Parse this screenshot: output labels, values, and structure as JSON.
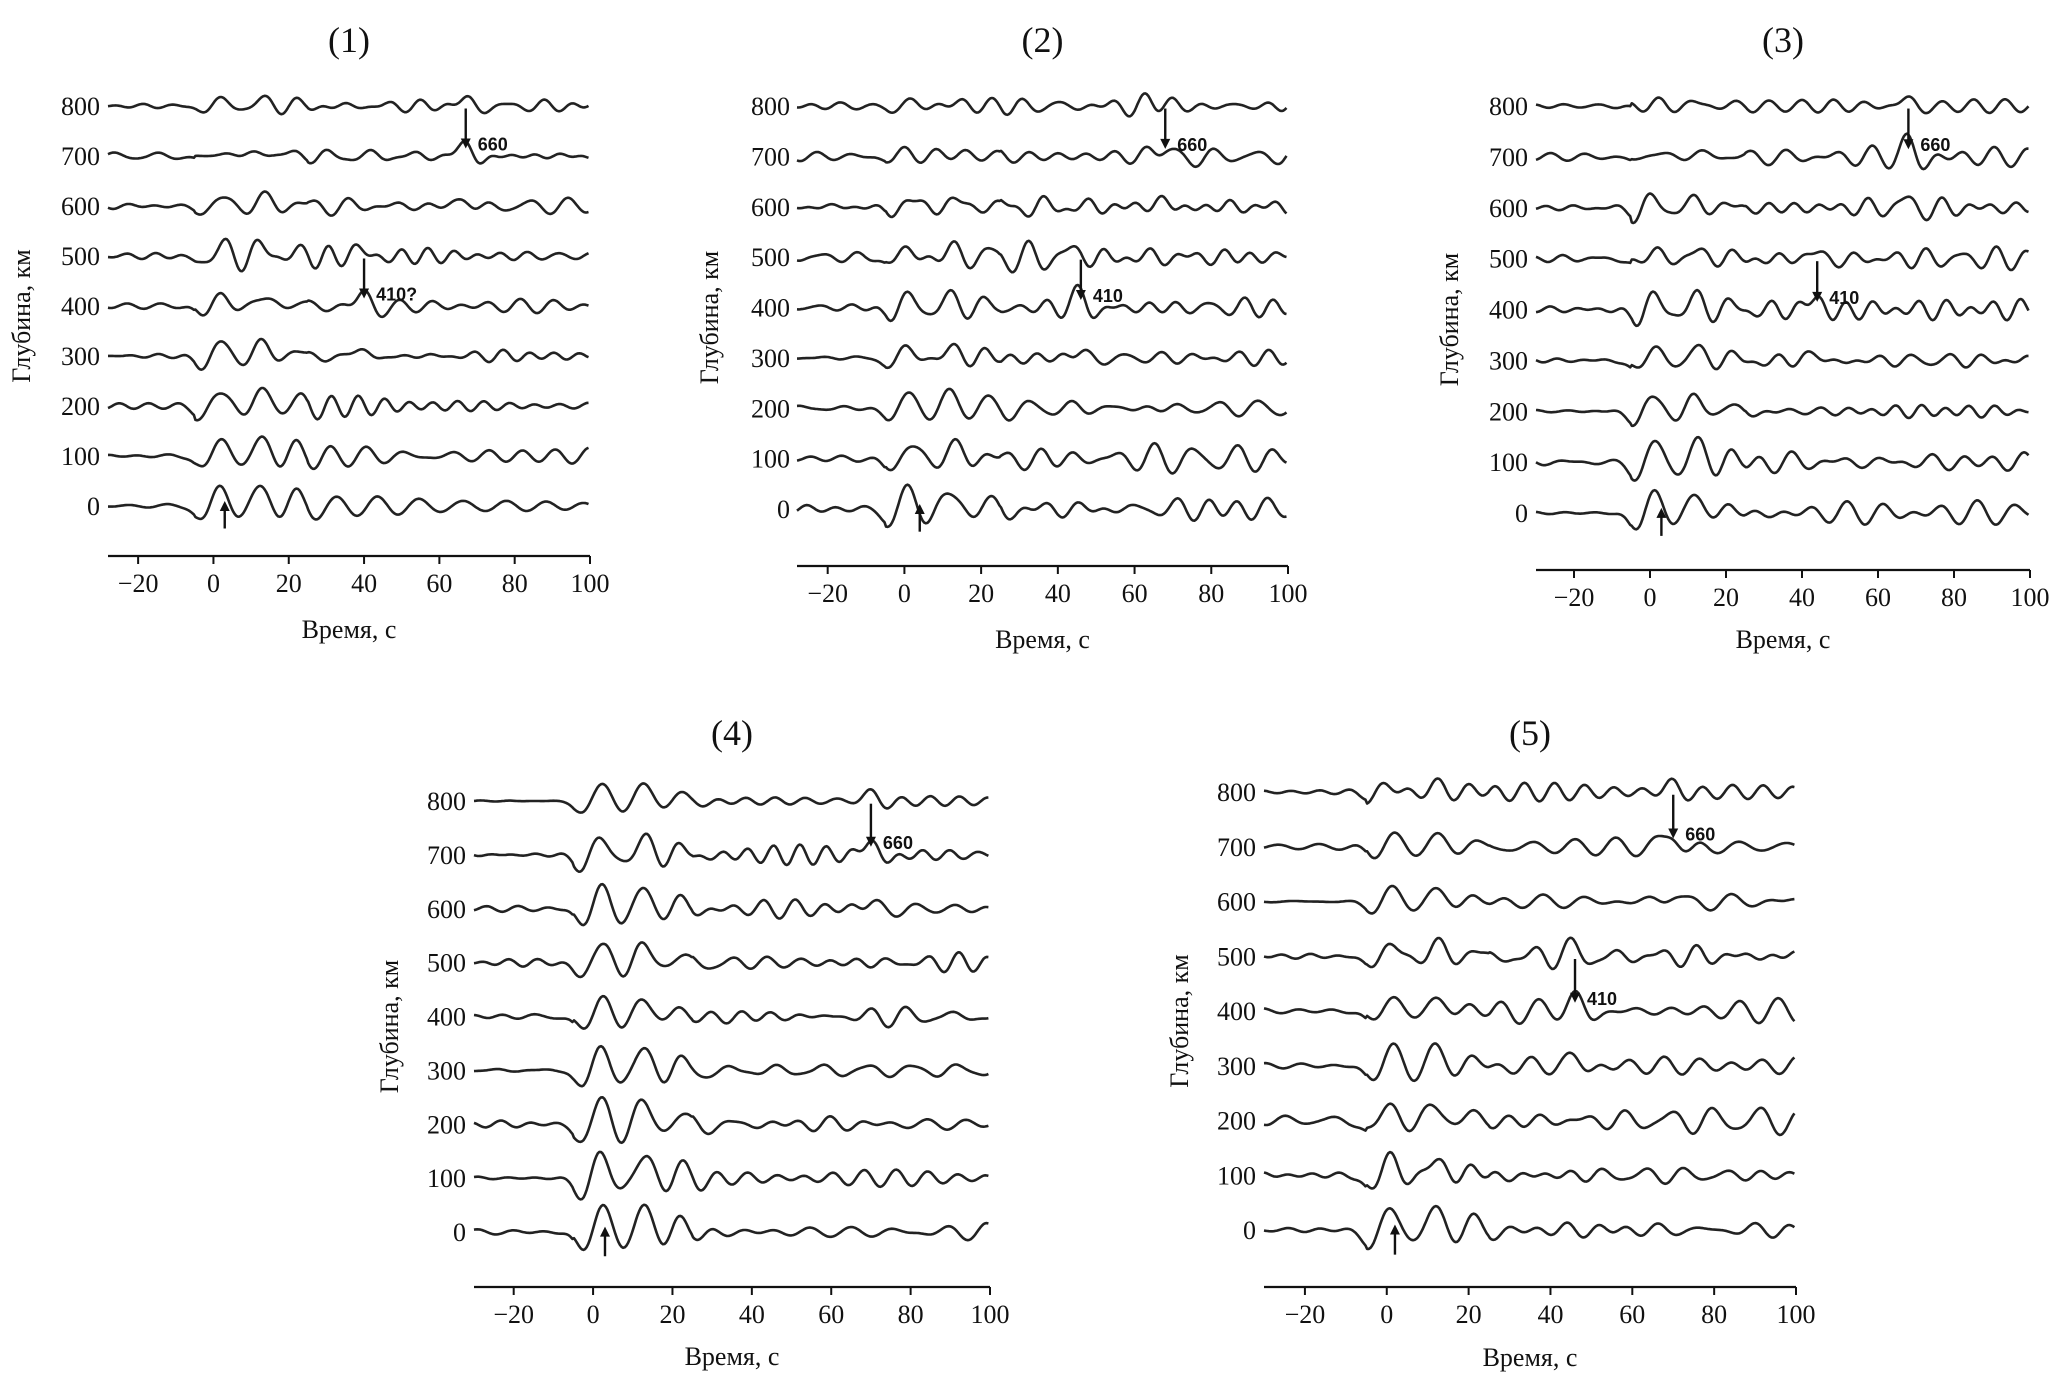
{
  "chart_data": [
    {
      "type": "line",
      "title": "(1)",
      "xlabel": "Время, с",
      "ylabel": "Глубина, км",
      "x_ticks": [
        "−20",
        "0",
        "20",
        "40",
        "60",
        "80",
        "100"
      ],
      "x_tick_values": [
        -20,
        0,
        20,
        40,
        60,
        80,
        100
      ],
      "xlim": [
        -28,
        100
      ],
      "depths": [
        0,
        100,
        200,
        300,
        400,
        500,
        600,
        700,
        800
      ],
      "y_tick_labels": [
        "0",
        "100",
        "200",
        "300",
        "400",
        "500",
        "600",
        "700",
        "800"
      ],
      "series_note": "one receiver-function trace per depth",
      "annotations": [
        {
          "text": "660",
          "time": 67,
          "depth": 700,
          "arrow": "down"
        },
        {
          "text": "410?",
          "time": 40,
          "depth": 400,
          "arrow": "down"
        },
        {
          "text": "",
          "time": 3,
          "depth": 0,
          "arrow": "up"
        }
      ]
    },
    {
      "type": "line",
      "title": "(2)",
      "xlabel": "Время, с",
      "ylabel": "Глубина, км",
      "x_ticks": [
        "−20",
        "0",
        "20",
        "40",
        "60",
        "80",
        "100"
      ],
      "x_tick_values": [
        -20,
        0,
        20,
        40,
        60,
        80,
        100
      ],
      "xlim": [
        -28,
        100
      ],
      "depths": [
        0,
        100,
        200,
        300,
        400,
        500,
        600,
        700,
        800
      ],
      "y_tick_labels": [
        "0",
        "100",
        "200",
        "300",
        "400",
        "500",
        "600",
        "700",
        "800"
      ],
      "annotations": [
        {
          "text": "660",
          "time": 68,
          "depth": 700,
          "arrow": "down"
        },
        {
          "text": "410",
          "time": 46,
          "depth": 400,
          "arrow": "down"
        },
        {
          "text": "",
          "time": 4,
          "depth": 0,
          "arrow": "up"
        }
      ]
    },
    {
      "type": "line",
      "title": "(3)",
      "xlabel": "Время, с",
      "ylabel": "Глубина, км",
      "x_ticks": [
        "−20",
        "0",
        "20",
        "40",
        "60",
        "80",
        "100"
      ],
      "x_tick_values": [
        -20,
        0,
        20,
        40,
        60,
        80,
        100
      ],
      "xlim": [
        -30,
        100
      ],
      "depths": [
        0,
        100,
        200,
        300,
        400,
        500,
        600,
        700,
        800
      ],
      "y_tick_labels": [
        "0",
        "100",
        "200",
        "300",
        "400",
        "500",
        "600",
        "700",
        "800"
      ],
      "annotations": [
        {
          "text": "660",
          "time": 68,
          "depth": 700,
          "arrow": "down"
        },
        {
          "text": "410",
          "time": 44,
          "depth": 400,
          "arrow": "down"
        },
        {
          "text": "",
          "time": 3,
          "depth": 0,
          "arrow": "up"
        }
      ]
    },
    {
      "type": "line",
      "title": "(4)",
      "xlabel": "Время, с",
      "ylabel": "Глубина, км",
      "x_ticks": [
        "−20",
        "0",
        "20",
        "40",
        "60",
        "80",
        "100"
      ],
      "x_tick_values": [
        -20,
        0,
        20,
        40,
        60,
        80,
        100
      ],
      "xlim": [
        -30,
        100
      ],
      "depths": [
        0,
        100,
        200,
        300,
        400,
        500,
        600,
        700,
        800
      ],
      "y_tick_labels": [
        "0",
        "100",
        "200",
        "300",
        "400",
        "500",
        "600",
        "700",
        "800"
      ],
      "annotations": [
        {
          "text": "660",
          "time": 70,
          "depth": 700,
          "arrow": "down"
        },
        {
          "text": "",
          "time": 3,
          "depth": 0,
          "arrow": "up"
        }
      ]
    },
    {
      "type": "line",
      "title": "(5)",
      "xlabel": "Время, с",
      "ylabel": "Глубина, км",
      "x_ticks": [
        "−20",
        "0",
        "20",
        "40",
        "60",
        "80",
        "100"
      ],
      "x_tick_values": [
        -20,
        0,
        20,
        40,
        60,
        80,
        100
      ],
      "xlim": [
        -30,
        100
      ],
      "depths": [
        0,
        100,
        200,
        300,
        400,
        500,
        600,
        700,
        800
      ],
      "y_tick_labels": [
        "0",
        "100",
        "200",
        "300",
        "400",
        "500",
        "600",
        "700",
        "800"
      ],
      "annotations": [
        {
          "text": "660",
          "time": 70,
          "depth": 700,
          "arrow": "down"
        },
        {
          "text": "410",
          "time": 46,
          "depth": 400,
          "arrow": "down"
        },
        {
          "text": "",
          "time": 2,
          "depth": 0,
          "arrow": "up"
        }
      ]
    }
  ]
}
